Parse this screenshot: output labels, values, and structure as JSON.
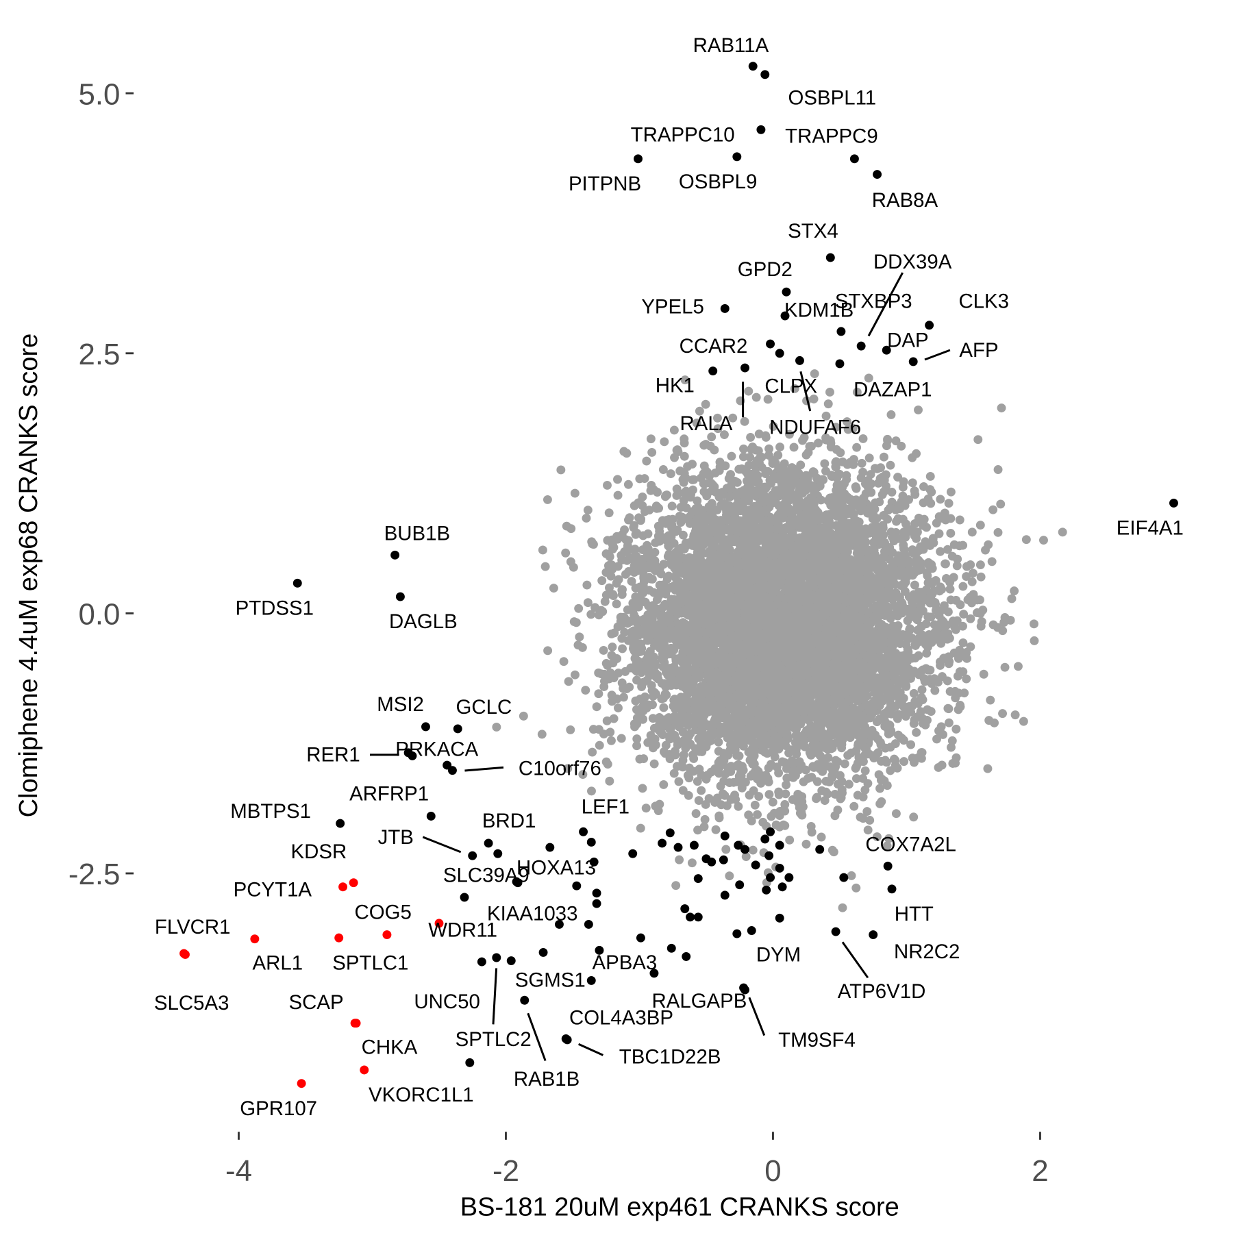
{
  "chart_data": {
    "type": "scatter",
    "title": "",
    "xlabel": "BS-181 20uM exp461 CRANKS score",
    "ylabel": "Clomiphene 4.4uM exp68 CRANKS score",
    "xlim": [
      -4.6,
      3.3
    ],
    "ylim": [
      -4.95,
      5.45
    ],
    "x_ticks": [
      -4,
      -2,
      0,
      2
    ],
    "x_tick_labels": [
      "-4",
      "-2",
      "0",
      "2"
    ],
    "y_ticks": [
      5.0,
      2.5,
      0.0,
      -2.5
    ],
    "y_tick_labels": [
      "5.0",
      "2.5",
      "0.0",
      "-2.5"
    ],
    "grid": false,
    "colors": {
      "background": "#A0A0A0",
      "hit": "#000000",
      "highlight": "#FF0000"
    },
    "background_distribution": {
      "n": 7000,
      "mean_x": 0.07,
      "mean_y": -0.1,
      "sd_x": 0.56,
      "sd_y": 0.74,
      "seed": 42
    },
    "labeled_points": [
      {
        "gene": "RAB11A",
        "x": -0.15,
        "y": 5.26,
        "group": "hit"
      },
      {
        "gene": "OSBPL11",
        "x": -0.06,
        "y": 5.18,
        "group": "hit"
      },
      {
        "gene": "TRAPPC10",
        "x": -0.09,
        "y": 4.65,
        "group": "hit"
      },
      {
        "gene": "TRAPPC9",
        "x": 0.61,
        "y": 4.37,
        "group": "hit"
      },
      {
        "gene": "PITPNB",
        "x": -1.01,
        "y": 4.37,
        "group": "hit"
      },
      {
        "gene": "OSBPL9",
        "x": -0.27,
        "y": 4.39,
        "group": "hit"
      },
      {
        "gene": "RAB8A",
        "x": 0.78,
        "y": 4.22,
        "group": "hit"
      },
      {
        "gene": "STX4",
        "x": 0.43,
        "y": 3.42,
        "group": "hit"
      },
      {
        "gene": "GPD2",
        "x": 0.1,
        "y": 3.09,
        "group": "hit"
      },
      {
        "gene": "YPEL5",
        "x": -0.36,
        "y": 2.93,
        "group": "hit"
      },
      {
        "gene": "KDM1B",
        "x": 0.09,
        "y": 2.86,
        "group": "hit"
      },
      {
        "gene": "STXBP3",
        "x": 0.51,
        "y": 2.71,
        "group": "hit"
      },
      {
        "gene": "DDX39A",
        "x": 0.66,
        "y": 2.57,
        "group": "hit"
      },
      {
        "gene": "CLK3",
        "x": 1.17,
        "y": 2.77,
        "group": "hit"
      },
      {
        "gene": "DAP",
        "x": 0.85,
        "y": 2.53,
        "group": "hit"
      },
      {
        "gene": "AFP",
        "x": 1.05,
        "y": 2.42,
        "group": "hit"
      },
      {
        "gene": "CCAR2",
        "x": -0.02,
        "y": 2.59,
        "group": "hit"
      },
      {
        "gene": "HK1",
        "x": -0.45,
        "y": 2.33,
        "group": "hit"
      },
      {
        "gene": "RALA",
        "x": -0.21,
        "y": 2.36,
        "group": "hit"
      },
      {
        "gene": "CLPX",
        "x": 0.2,
        "y": 2.43,
        "group": "hit"
      },
      {
        "gene": "NDUFAF6",
        "x": 0.05,
        "y": 2.5,
        "group": "hit"
      },
      {
        "gene": "DAZAP1",
        "x": 0.5,
        "y": 2.4,
        "group": "hit"
      },
      {
        "gene": "EIF4A1",
        "x": 3.0,
        "y": 1.06,
        "group": "hit"
      },
      {
        "gene": "PTDSS1",
        "x": -3.56,
        "y": 0.29,
        "group": "hit"
      },
      {
        "gene": "BUB1B",
        "x": -2.83,
        "y": 0.56,
        "group": "hit"
      },
      {
        "gene": "DAGLB",
        "x": -2.79,
        "y": 0.16,
        "group": "hit"
      },
      {
        "gene": "MSI2",
        "x": -2.6,
        "y": -1.09,
        "group": "hit"
      },
      {
        "gene": "GCLC",
        "x": -2.36,
        "y": -1.11,
        "group": "hit"
      },
      {
        "gene": "RER1",
        "x": -2.73,
        "y": -1.34,
        "group": "hit"
      },
      {
        "gene": "PRKACA",
        "x": -2.7,
        "y": -1.37,
        "group": "hit"
      },
      {
        "gene": "C10orf76",
        "x": -2.4,
        "y": -1.51,
        "group": "hit"
      },
      {
        "gene": "ARFRP1",
        "x": -2.56,
        "y": -1.95,
        "group": "hit"
      },
      {
        "gene": "MBTPS1",
        "x": -3.24,
        "y": -2.02,
        "group": "hit"
      },
      {
        "gene": "JTB",
        "x": -2.25,
        "y": -2.33,
        "group": "hit"
      },
      {
        "gene": "BRD1",
        "x": -2.13,
        "y": -2.21,
        "group": "hit"
      },
      {
        "gene": "LEF1",
        "x": -1.42,
        "y": -2.1,
        "group": "hit"
      },
      {
        "gene": "HOXA13",
        "x": -1.67,
        "y": -2.25,
        "group": "hit"
      },
      {
        "gene": "SLC39A9",
        "x": -1.91,
        "y": -2.59,
        "group": "hit"
      },
      {
        "gene": "KIAA1033",
        "x": -1.6,
        "y": -2.99,
        "group": "hit"
      },
      {
        "gene": "SGMS1",
        "x": -1.36,
        "y": -3.53,
        "group": "hit"
      },
      {
        "gene": "UNC50",
        "x": -2.18,
        "y": -3.35,
        "group": "hit"
      },
      {
        "gene": "SPTLC2",
        "x": -2.07,
        "y": -3.31,
        "group": "hit"
      },
      {
        "gene": "RAB1B",
        "x": -1.86,
        "y": -3.72,
        "group": "hit"
      },
      {
        "gene": "COL4A3BP",
        "x": -1.55,
        "y": -4.09,
        "group": "hit"
      },
      {
        "gene": "TBC1D22B",
        "x": -1.54,
        "y": -4.1,
        "group": "hit"
      },
      {
        "gene": "APBA3",
        "x": -1.3,
        "y": -3.24,
        "group": "hit"
      },
      {
        "gene": "RALGAPB",
        "x": -0.22,
        "y": -3.6,
        "group": "hit"
      },
      {
        "gene": "TM9SF4",
        "x": -0.21,
        "y": -3.62,
        "group": "hit"
      },
      {
        "gene": "DYM",
        "x": -0.16,
        "y": -3.05,
        "group": "hit"
      },
      {
        "gene": "ATP6V1D",
        "x": 0.47,
        "y": -3.06,
        "group": "hit"
      },
      {
        "gene": "NR2C2",
        "x": 0.75,
        "y": -3.09,
        "group": "hit"
      },
      {
        "gene": "HTT",
        "x": 0.89,
        "y": -2.65,
        "group": "hit"
      },
      {
        "gene": "COX7A2L",
        "x": 0.86,
        "y": -2.43,
        "group": "hit"
      },
      {
        "gene": "PCYT1A",
        "x": -3.22,
        "y": -2.63,
        "group": "highlight"
      },
      {
        "gene": "KDSR",
        "x": -3.14,
        "y": -2.59,
        "group": "highlight"
      },
      {
        "gene": "FLVCR1",
        "x": -4.41,
        "y": -3.27,
        "group": "highlight"
      },
      {
        "gene": "SLC5A3",
        "x": -4.4,
        "y": -3.28,
        "group": "highlight"
      },
      {
        "gene": "ARL1",
        "x": -3.88,
        "y": -3.13,
        "group": "highlight"
      },
      {
        "gene": "SPTLC1",
        "x": -3.25,
        "y": -3.12,
        "group": "highlight"
      },
      {
        "gene": "COG5",
        "x": -2.89,
        "y": -3.09,
        "group": "highlight"
      },
      {
        "gene": "WDR11",
        "x": -2.5,
        "y": -2.98,
        "group": "highlight"
      },
      {
        "gene": "SCAP",
        "x": -3.13,
        "y": -3.94,
        "group": "highlight"
      },
      {
        "gene": "CHKA",
        "x": -3.12,
        "y": -3.94,
        "group": "highlight"
      },
      {
        "gene": "VKORC1L1",
        "x": -3.06,
        "y": -4.39,
        "group": "highlight"
      },
      {
        "gene": "GPR107",
        "x": -3.53,
        "y": -4.52,
        "group": "highlight"
      }
    ],
    "unlabeled_hits": [
      [
        -1.36,
        -2.2
      ],
      [
        -1.05,
        -2.31
      ],
      [
        -0.77,
        -2.11
      ],
      [
        -0.83,
        -2.21
      ],
      [
        -0.71,
        -2.25
      ],
      [
        -0.59,
        -2.23
      ],
      [
        -0.5,
        -2.36
      ],
      [
        -0.56,
        -2.55
      ],
      [
        -0.46,
        -2.39
      ],
      [
        -0.37,
        -2.37
      ],
      [
        -0.36,
        -2.14
      ],
      [
        -0.26,
        -2.23
      ],
      [
        -0.21,
        -2.27
      ],
      [
        -0.06,
        -2.17
      ],
      [
        -0.02,
        -2.1
      ],
      [
        0.05,
        -2.23
      ],
      [
        -0.03,
        -2.33
      ],
      [
        0.05,
        -2.45
      ],
      [
        0.12,
        -2.54
      ],
      [
        0.07,
        -2.63
      ],
      [
        0.35,
        -2.27
      ],
      [
        -0.02,
        -2.54
      ],
      [
        -0.25,
        -2.61
      ],
      [
        -0.36,
        -2.71
      ],
      [
        -0.66,
        -2.84
      ],
      [
        -0.62,
        -2.92
      ],
      [
        -0.56,
        -2.92
      ],
      [
        -0.89,
        -3.46
      ],
      [
        -0.76,
        -3.22
      ],
      [
        -0.65,
        -3.3
      ],
      [
        -0.99,
        -3.12
      ],
      [
        -1.32,
        -2.79
      ],
      [
        -1.32,
        -2.69
      ],
      [
        -1.47,
        -2.62
      ],
      [
        -1.38,
        -2.99
      ],
      [
        -1.34,
        -2.39
      ],
      [
        -2.06,
        -2.31
      ],
      [
        -1.92,
        -2.58
      ],
      [
        -2.31,
        -2.73
      ],
      [
        -1.72,
        -3.26
      ],
      [
        -1.96,
        -3.34
      ],
      [
        -2.27,
        -4.32
      ],
      [
        0.05,
        -2.93
      ],
      [
        -0.27,
        -3.08
      ],
      [
        0.53,
        -2.54
      ],
      [
        -2.44,
        -1.46
      ],
      [
        -0.13,
        -2.42
      ],
      [
        -0.05,
        -2.66
      ]
    ]
  }
}
